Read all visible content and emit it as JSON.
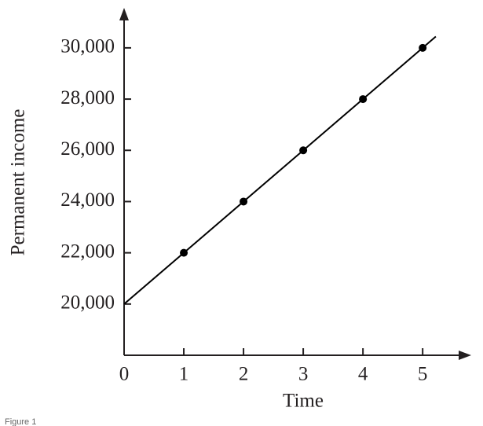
{
  "chart_data": {
    "type": "scatter",
    "x_label": "Time",
    "y_label": "Permanent income",
    "caption": "Figure 1",
    "series": [
      {
        "style": "markers",
        "color": "#000000",
        "x": [
          1,
          2,
          3,
          4,
          5
        ],
        "values": [
          22000,
          24000,
          26000,
          28000,
          30000
        ]
      },
      {
        "style": "line",
        "color": "#000000",
        "x": [
          0,
          5.22
        ],
        "values": [
          20000,
          30440
        ]
      }
    ],
    "xlim": [
      0,
      5.8
    ],
    "xticks": [
      0,
      1,
      2,
      3,
      4,
      5
    ],
    "ylim": [
      18000,
      31500
    ],
    "yticks": [
      {
        "value": 20000,
        "label": "20,000"
      },
      {
        "value": 22000,
        "label": "22,000"
      },
      {
        "value": 24000,
        "label": "24,000"
      },
      {
        "value": 26000,
        "label": "26,000"
      },
      {
        "value": 28000,
        "label": "28,000"
      },
      {
        "value": 30000,
        "label": "30,000"
      }
    ],
    "grid": false
  }
}
